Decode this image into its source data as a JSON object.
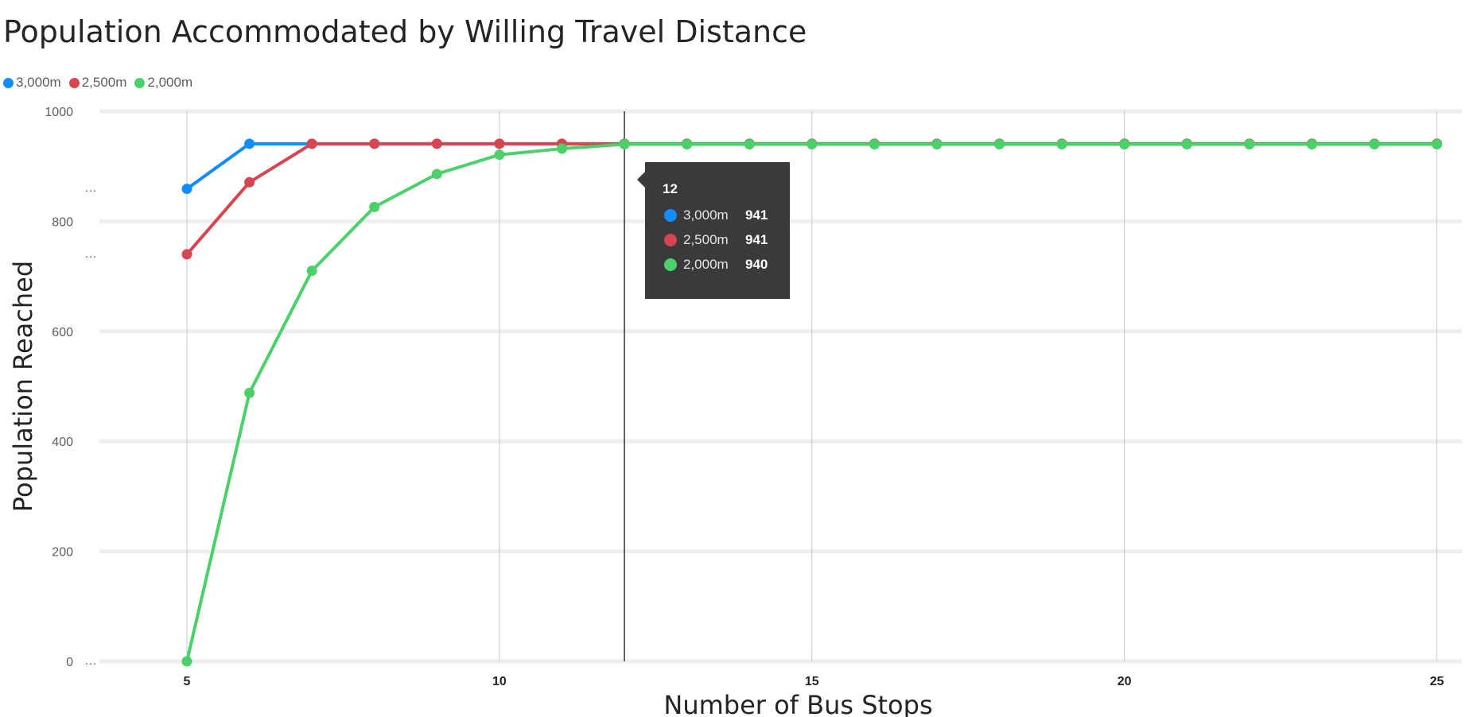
{
  "title": "Population Accommodated by Willing Travel Distance",
  "chart_data": {
    "type": "line",
    "title": "Population Accommodated by Willing Travel Distance",
    "xlabel": "Number of Bus Stops",
    "ylabel": "Population Reached",
    "x": [
      5,
      6,
      7,
      8,
      9,
      10,
      11,
      12,
      13,
      14,
      15,
      16,
      17,
      18,
      19,
      20,
      21,
      22,
      23,
      24,
      25
    ],
    "xlim": [
      3.6,
      25.4
    ],
    "ylim": [
      0,
      1000
    ],
    "xticks": [
      5,
      10,
      15,
      20,
      25
    ],
    "yticks": [
      0,
      200,
      400,
      600,
      800,
      1000
    ],
    "ytick_ellipsis_at": [
      0,
      740,
      860
    ],
    "grid": true,
    "legend_position": "top-left",
    "series": [
      {
        "name": "3,000m",
        "color": "#118DFF",
        "values": [
          859,
          941,
          941,
          941,
          941,
          941,
          941,
          941,
          941,
          941,
          941,
          941,
          941,
          941,
          941,
          941,
          941,
          941,
          941,
          941,
          941
        ]
      },
      {
        "name": "2,500m",
        "color": "#D64550",
        "values": [
          740,
          871,
          941,
          941,
          941,
          941,
          941,
          941,
          941,
          941,
          941,
          941,
          941,
          941,
          941,
          941,
          941,
          941,
          941,
          941,
          941
        ]
      },
      {
        "name": "2,000m",
        "color": "#4BD16A",
        "values": [
          0,
          488,
          710,
          826,
          886,
          921,
          932,
          940,
          940,
          940,
          940,
          940,
          940,
          940,
          940,
          940,
          940,
          940,
          940,
          940,
          940
        ]
      }
    ],
    "hover": {
      "x": 12,
      "label": "12",
      "rows": [
        {
          "name": "3,000m",
          "value": "941",
          "color": "#118DFF"
        },
        {
          "name": "2,500m",
          "value": "941",
          "color": "#D64550"
        },
        {
          "name": "2,000m",
          "value": "940",
          "color": "#4BD16A"
        }
      ]
    }
  }
}
